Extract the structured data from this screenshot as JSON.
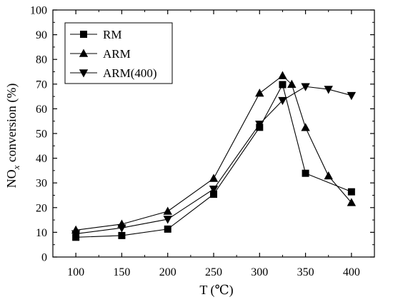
{
  "chart_data": {
    "type": "line",
    "title": "",
    "xlabel": "T (℃)",
    "ylabel": {
      "prefix": "NO",
      "subscript": "x",
      "suffix": " conversion (%)"
    },
    "xlim": [
      75,
      425
    ],
    "ylim": [
      0,
      100
    ],
    "xticks": [
      100,
      150,
      200,
      250,
      300,
      350,
      400
    ],
    "yticks": [
      0,
      10,
      20,
      30,
      40,
      50,
      60,
      70,
      80,
      90,
      100
    ],
    "grid": false,
    "legend": "top-left",
    "series": [
      {
        "name": "RM",
        "marker": "square",
        "x": [
          100,
          150,
          200,
          250,
          300,
          325,
          350,
          400
        ],
        "y": [
          8.0,
          8.7,
          11.3,
          25.4,
          52.5,
          69.8,
          33.9,
          26.4
        ]
      },
      {
        "name": "ARM",
        "marker": "triangle-up",
        "x": [
          100,
          150,
          200,
          250,
          300,
          325,
          335,
          350,
          375,
          400
        ],
        "y": [
          10.9,
          13.3,
          18.5,
          31.8,
          66.3,
          73.4,
          69.9,
          52.4,
          32.8,
          22.0
        ]
      },
      {
        "name": "ARM(400)",
        "marker": "triangle-down",
        "x": [
          100,
          150,
          200,
          250,
          300,
          325,
          350,
          375,
          400
        ],
        "y": [
          9.4,
          11.8,
          15.3,
          27.5,
          53.8,
          63.4,
          69.0,
          67.9,
          65.4
        ]
      }
    ]
  }
}
